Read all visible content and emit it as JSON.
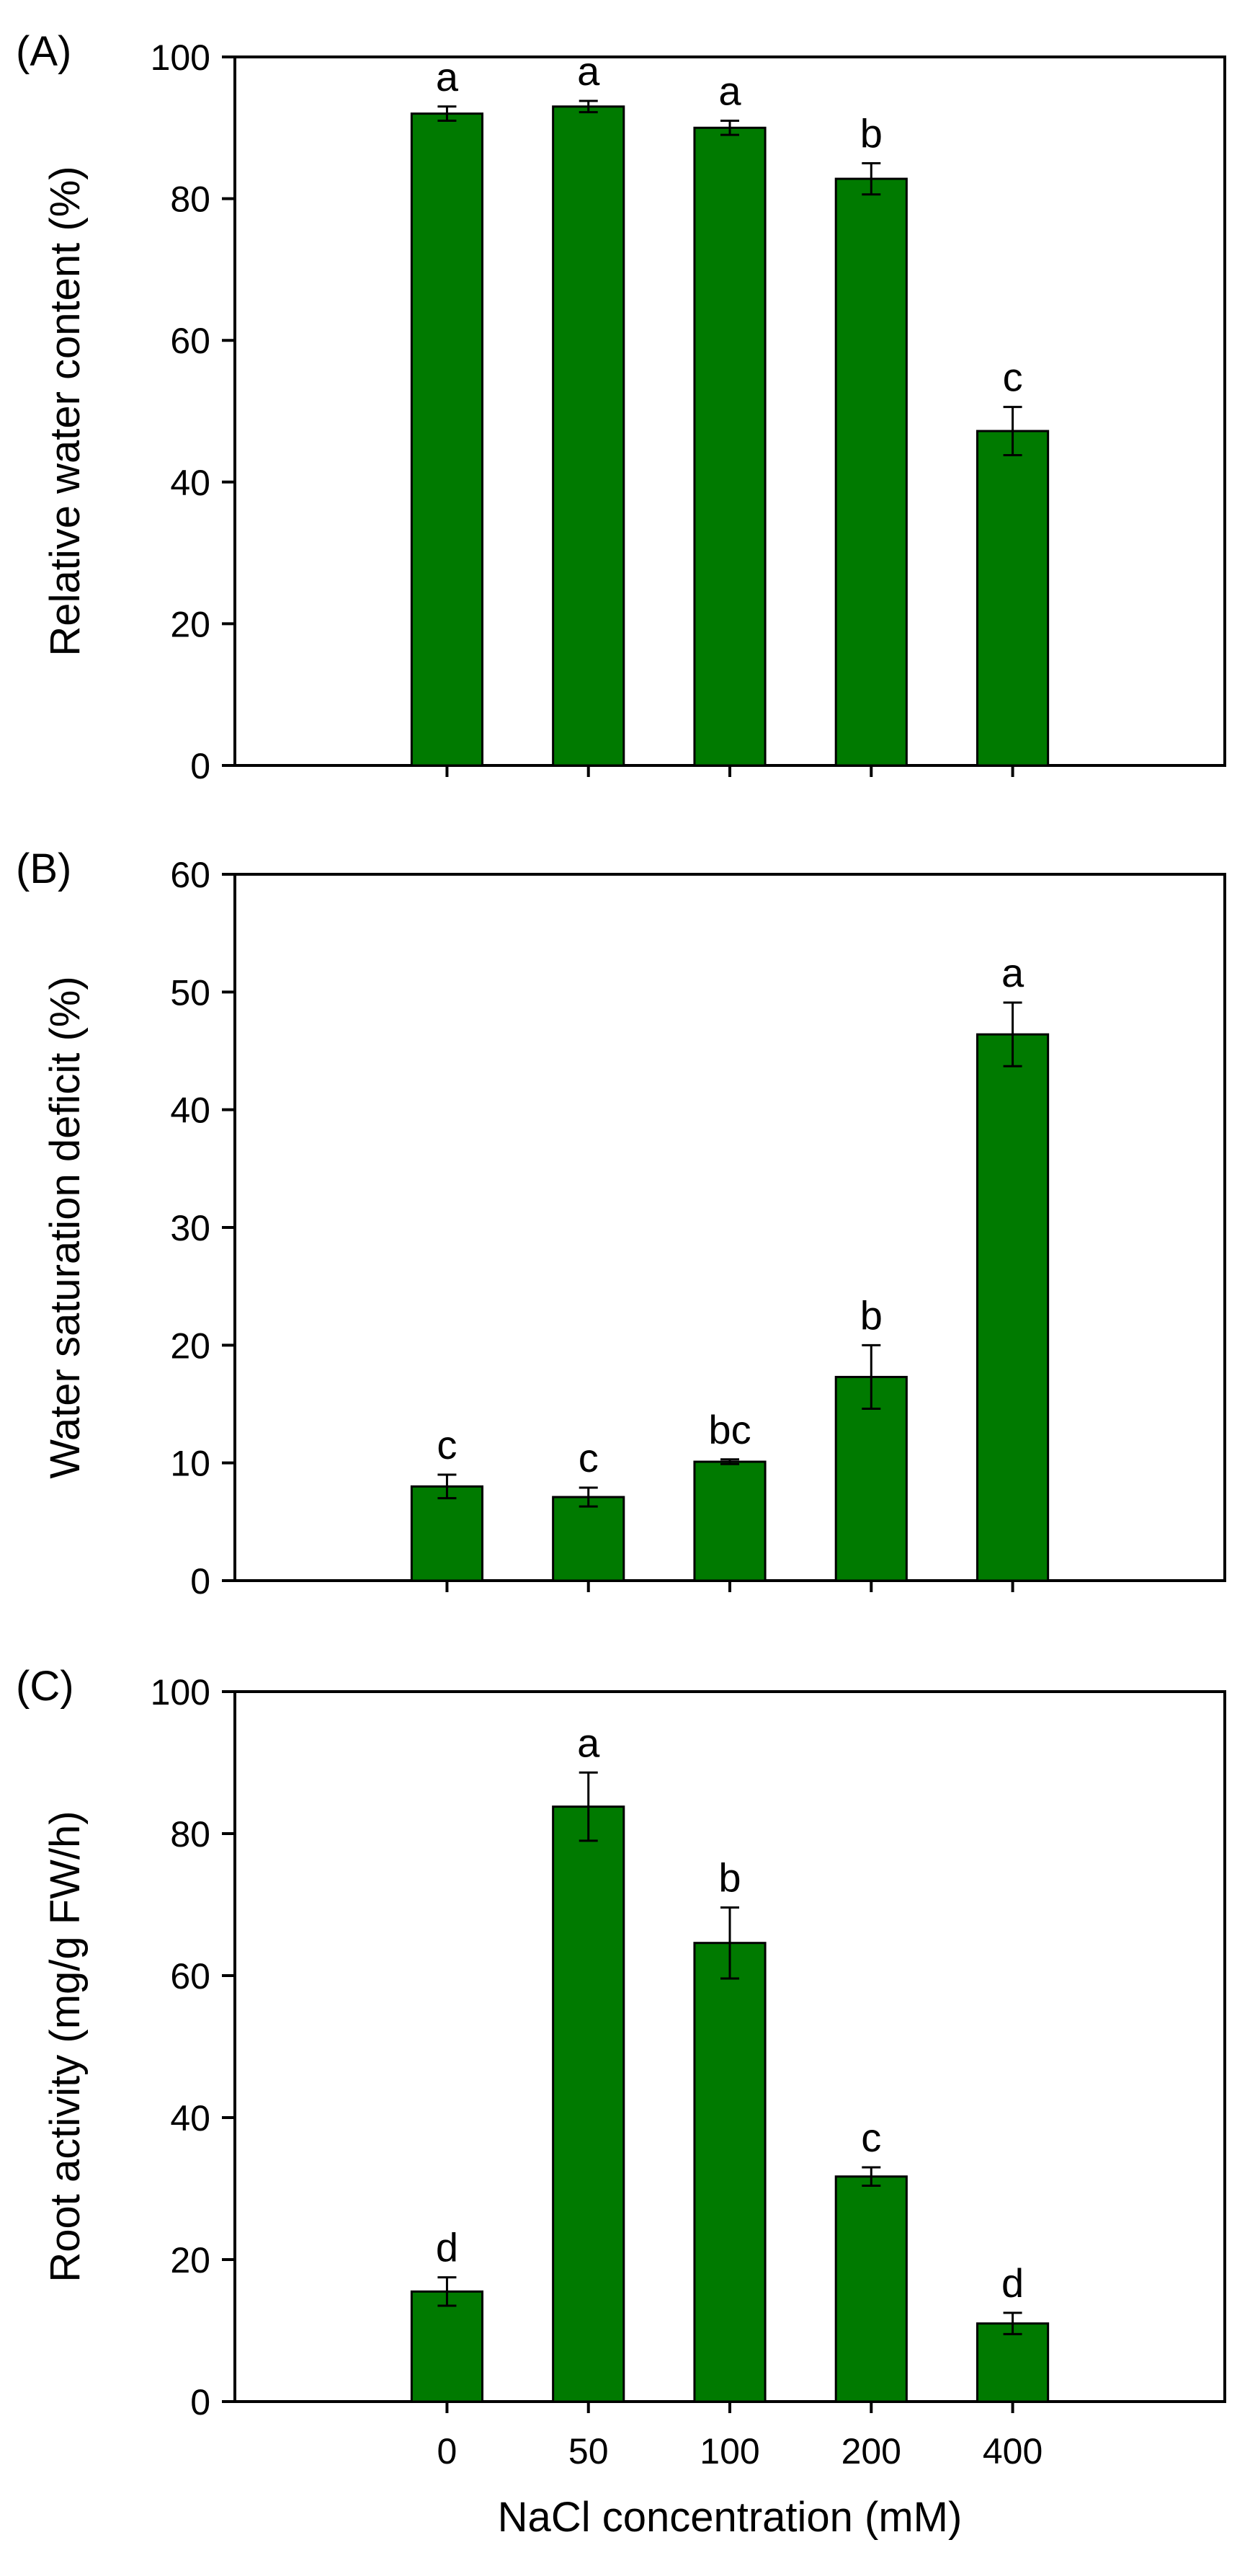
{
  "colors": {
    "bar_fill": "#007a00",
    "axis": "#000000"
  },
  "xaxis": {
    "label": "NaCl concentration (mM)",
    "categories": [
      "0",
      "50",
      "100",
      "200",
      "400"
    ]
  },
  "chart_data": [
    {
      "type": "bar",
      "panel": "(A)",
      "categories": [
        "0",
        "50",
        "100",
        "200",
        "400"
      ],
      "values": [
        92,
        93,
        90,
        82.8,
        47.2
      ],
      "errors": [
        1,
        0.8,
        1,
        2.2,
        3.4
      ],
      "significance": [
        "a",
        "a",
        "a",
        "b",
        "c"
      ],
      "ylabel": "Relative water content (%)",
      "ylim": [
        0,
        100
      ],
      "yticks": [
        0,
        20,
        40,
        60,
        80,
        100
      ],
      "xlabel": ""
    },
    {
      "type": "bar",
      "panel": "(B)",
      "categories": [
        "0",
        "50",
        "100",
        "200",
        "400"
      ],
      "values": [
        8,
        7.1,
        10.1,
        17.3,
        46.4
      ],
      "errors": [
        1,
        0.8,
        0.2,
        2.7,
        2.7
      ],
      "significance": [
        "c",
        "c",
        "bc",
        "b",
        "a"
      ],
      "ylabel": "Water saturation deficit (%)",
      "ylim": [
        0,
        60
      ],
      "yticks": [
        0,
        10,
        20,
        30,
        40,
        50,
        60
      ],
      "xlabel": ""
    },
    {
      "type": "bar",
      "panel": "(C)",
      "categories": [
        "0",
        "50",
        "100",
        "200",
        "400"
      ],
      "values": [
        15.5,
        83.8,
        64.6,
        31.7,
        11
      ],
      "errors": [
        2,
        4.8,
        5,
        1.3,
        1.5
      ],
      "significance": [
        "d",
        "a",
        "b",
        "c",
        "d"
      ],
      "ylabel": "Root activity (mg/g FW/h)",
      "ylim": [
        0,
        100
      ],
      "yticks": [
        0,
        20,
        40,
        60,
        80,
        100
      ],
      "xlabel": "NaCl concentration (mM)"
    }
  ]
}
